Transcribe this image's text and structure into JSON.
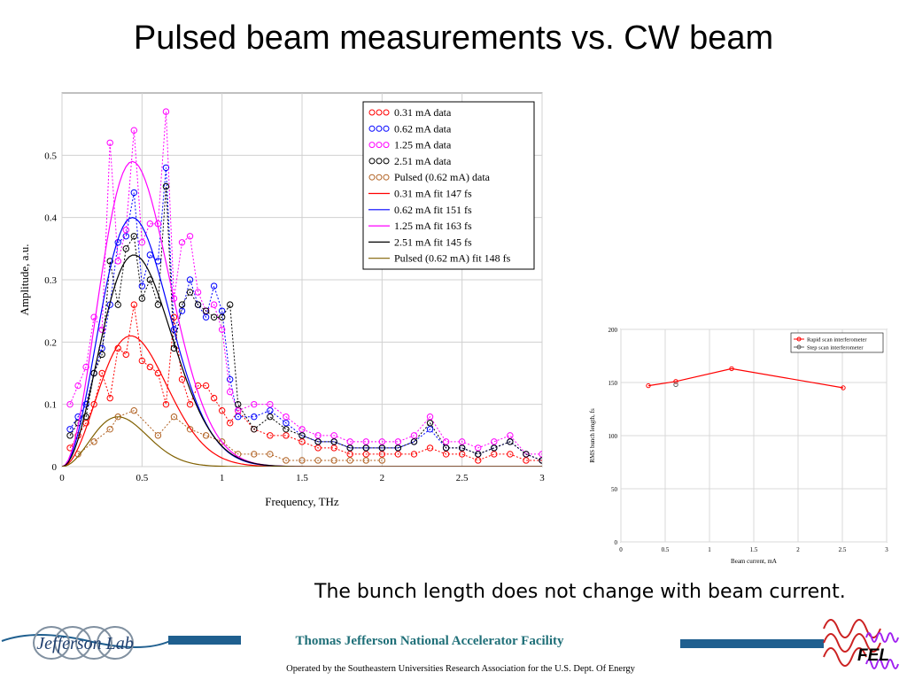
{
  "slide": {
    "title": "Pulsed beam measurements vs. CW beam",
    "caption": "The bunch length does not change with beam current.",
    "facility": "Thomas Jefferson National Accelerator Facility",
    "operated": "Operated by the Southeastern Universities Research Association for the U.S. Dept. Of Energy",
    "lab_logo_text": "Jefferson Lab",
    "fel_logo_text": "FEL"
  },
  "chart_data": [
    {
      "type": "line",
      "xlabel": "Frequency, THz",
      "ylabel": "Amplitude, a.u.",
      "xlim": [
        0,
        3
      ],
      "ylim": [
        0,
        0.6
      ],
      "xticks": [
        "0",
        "0.5",
        "1",
        "1.5",
        "2",
        "2.5",
        "3"
      ],
      "yticks": [
        "0",
        "0.1",
        "0.2",
        "0.3",
        "0.4",
        "0.5"
      ],
      "grid": true,
      "legend_position": "top-right",
      "series": [
        {
          "name": "0.31 mA data",
          "kind": "data",
          "color": "#ff0000",
          "x": [
            0.05,
            0.1,
            0.15,
            0.2,
            0.25,
            0.3,
            0.35,
            0.4,
            0.45,
            0.5,
            0.55,
            0.6,
            0.65,
            0.7,
            0.75,
            0.8,
            0.85,
            0.9,
            0.95,
            1.0,
            1.05,
            1.1,
            1.2,
            1.3,
            1.4,
            1.5,
            1.6,
            1.7,
            1.8,
            1.9,
            2.0,
            2.1,
            2.2,
            2.3,
            2.4,
            2.5,
            2.6,
            2.7,
            2.8,
            2.9,
            3.0
          ],
          "y": [
            0.03,
            0.05,
            0.07,
            0.1,
            0.15,
            0.11,
            0.19,
            0.18,
            0.26,
            0.17,
            0.16,
            0.15,
            0.1,
            0.24,
            0.14,
            0.1,
            0.13,
            0.13,
            0.11,
            0.09,
            0.07,
            0.09,
            0.06,
            0.05,
            0.05,
            0.04,
            0.03,
            0.03,
            0.02,
            0.02,
            0.02,
            0.02,
            0.02,
            0.03,
            0.02,
            0.02,
            0.01,
            0.02,
            0.02,
            0.01,
            0.01
          ]
        },
        {
          "name": "0.62 mA data",
          "kind": "data",
          "color": "#0000ff",
          "x": [
            0.05,
            0.1,
            0.15,
            0.2,
            0.25,
            0.3,
            0.35,
            0.4,
            0.45,
            0.5,
            0.55,
            0.6,
            0.65,
            0.7,
            0.75,
            0.8,
            0.85,
            0.9,
            0.95,
            1.0,
            1.05,
            1.1,
            1.2,
            1.3,
            1.4,
            1.5,
            1.6,
            1.7,
            1.8,
            1.9,
            2.0,
            2.1,
            2.2,
            2.3,
            2.4,
            2.5,
            2.6,
            2.7,
            2.8,
            2.9,
            3.0
          ],
          "y": [
            0.06,
            0.08,
            0.1,
            0.15,
            0.19,
            0.26,
            0.36,
            0.37,
            0.44,
            0.29,
            0.34,
            0.33,
            0.48,
            0.22,
            0.25,
            0.3,
            0.26,
            0.24,
            0.29,
            0.25,
            0.14,
            0.08,
            0.08,
            0.09,
            0.07,
            0.05,
            0.04,
            0.04,
            0.03,
            0.03,
            0.03,
            0.03,
            0.04,
            0.06,
            0.03,
            0.03,
            0.02,
            0.03,
            0.04,
            0.02,
            0.01
          ]
        },
        {
          "name": "1.25 mA data",
          "kind": "data",
          "color": "#ff00ff",
          "x": [
            0.05,
            0.1,
            0.15,
            0.2,
            0.25,
            0.3,
            0.35,
            0.4,
            0.45,
            0.5,
            0.55,
            0.6,
            0.65,
            0.7,
            0.75,
            0.8,
            0.85,
            0.9,
            0.95,
            1.0,
            1.05,
            1.1,
            1.2,
            1.3,
            1.4,
            1.5,
            1.6,
            1.7,
            1.8,
            1.9,
            2.0,
            2.1,
            2.2,
            2.3,
            2.4,
            2.5,
            2.6,
            2.7,
            2.8,
            2.9,
            3.0
          ],
          "y": [
            0.1,
            0.13,
            0.16,
            0.24,
            0.22,
            0.52,
            0.33,
            0.38,
            0.54,
            0.36,
            0.39,
            0.39,
            0.57,
            0.27,
            0.36,
            0.37,
            0.28,
            0.25,
            0.26,
            0.22,
            0.12,
            0.09,
            0.1,
            0.1,
            0.08,
            0.06,
            0.05,
            0.05,
            0.04,
            0.04,
            0.04,
            0.04,
            0.05,
            0.08,
            0.04,
            0.04,
            0.03,
            0.04,
            0.05,
            0.02,
            0.02
          ]
        },
        {
          "name": "2.51 mA data",
          "kind": "data",
          "color": "#000000",
          "x": [
            0.05,
            0.1,
            0.15,
            0.2,
            0.25,
            0.3,
            0.35,
            0.4,
            0.45,
            0.5,
            0.55,
            0.6,
            0.65,
            0.7,
            0.75,
            0.8,
            0.85,
            0.9,
            0.95,
            1.0,
            1.05,
            1.1,
            1.2,
            1.3,
            1.4,
            1.5,
            1.6,
            1.7,
            1.8,
            1.9,
            2.0,
            2.1,
            2.2,
            2.3,
            2.4,
            2.5,
            2.6,
            2.7,
            2.8,
            2.9,
            3.0
          ],
          "y": [
            0.05,
            0.07,
            0.08,
            0.15,
            0.18,
            0.33,
            0.26,
            0.35,
            0.37,
            0.27,
            0.3,
            0.26,
            0.45,
            0.19,
            0.26,
            0.28,
            0.26,
            0.25,
            0.24,
            0.24,
            0.26,
            0.1,
            0.06,
            0.08,
            0.06,
            0.05,
            0.04,
            0.04,
            0.03,
            0.03,
            0.03,
            0.03,
            0.04,
            0.07,
            0.03,
            0.03,
            0.02,
            0.03,
            0.04,
            0.02,
            0.01
          ]
        },
        {
          "name": "Pulsed (0.62 mA) data",
          "kind": "data",
          "color": "#b06020",
          "x": [
            0.1,
            0.2,
            0.3,
            0.35,
            0.45,
            0.6,
            0.7,
            0.8,
            0.9,
            1.0,
            1.1,
            1.2,
            1.3,
            1.4,
            1.5,
            1.6,
            1.7,
            1.8,
            1.9,
            2.0
          ],
          "y": [
            0.02,
            0.04,
            0.06,
            0.08,
            0.09,
            0.05,
            0.08,
            0.06,
            0.05,
            0.04,
            0.02,
            0.02,
            0.02,
            0.01,
            0.01,
            0.01,
            0.01,
            0.01,
            0.01,
            0.01
          ]
        },
        {
          "name": "0.31 mA fit 147 fs",
          "kind": "fit",
          "color": "#ff0000",
          "peak_x": 0.43,
          "peak_y": 0.21
        },
        {
          "name": "0.62 mA fit 151 fs",
          "kind": "fit",
          "color": "#0000ff",
          "peak_x": 0.44,
          "peak_y": 0.4
        },
        {
          "name": "1.25 mA fit 163 fs",
          "kind": "fit",
          "color": "#ff00ff",
          "peak_x": 0.44,
          "peak_y": 0.49
        },
        {
          "name": "2.51 mA fit 145 fs",
          "kind": "fit",
          "color": "#000000",
          "peak_x": 0.45,
          "peak_y": 0.34
        },
        {
          "name": "Pulsed (0.62 mA) fit 148 fs",
          "kind": "fit",
          "color": "#806000",
          "peak_x": 0.35,
          "peak_y": 0.08
        }
      ]
    },
    {
      "type": "line",
      "xlabel": "Beam current, mA",
      "ylabel": "RMS bunch length, fs",
      "xlim": [
        0,
        3
      ],
      "ylim": [
        0,
        200
      ],
      "xticks": [
        "0",
        "0.5",
        "1",
        "1.5",
        "2",
        "2.5",
        "3"
      ],
      "yticks": [
        "0",
        "50",
        "100",
        "150",
        "200"
      ],
      "grid": true,
      "legend_position": "top-right",
      "series": [
        {
          "name": "Rapid scan interferometer",
          "color": "#ff0000",
          "x": [
            0.31,
            0.62,
            1.25,
            2.51
          ],
          "y": [
            147,
            151,
            163,
            145
          ]
        },
        {
          "name": "Step scan interferometer",
          "color": "#606060",
          "x": [
            0.62
          ],
          "y": [
            148
          ]
        }
      ]
    }
  ]
}
